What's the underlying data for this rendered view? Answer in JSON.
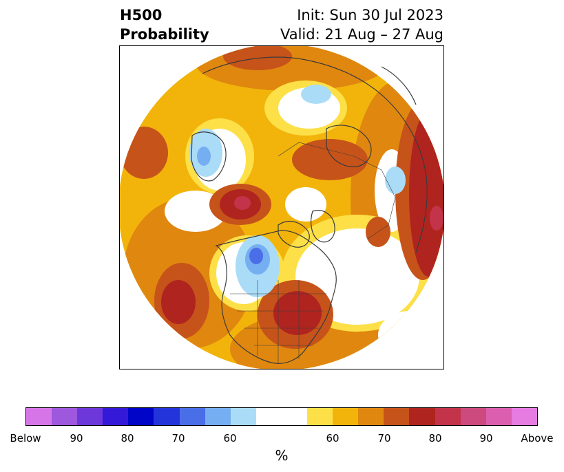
{
  "title": {
    "line1_left": "H500",
    "line2_left": "Probability",
    "line1_right": "Init: Sun 30 Jul 2023",
    "line2_right": "Valid: 21 Aug – 27 Aug"
  },
  "colorbar": {
    "unit": "%",
    "colors": [
      "#d675e8",
      "#9e58dd",
      "#6d38d9",
      "#3519d8",
      "#0005c8",
      "#2335da",
      "#4a6ee8",
      "#75aef1",
      "#aadcf8",
      "#ffffff",
      "#ffffff",
      "#fde047",
      "#f2b40b",
      "#e0870f",
      "#c6531a",
      "#b0241f",
      "#c3334a",
      "#cc4a7d",
      "#db5fae",
      "#e67be2"
    ],
    "tick_labels": [
      "Below",
      "90",
      "80",
      "70",
      "60",
      "60",
      "70",
      "80",
      "90",
      "Above"
    ]
  },
  "map": {
    "colors": {
      "light_yellow": "#fde047",
      "yellow": "#f2b40b",
      "orange": "#e0870f",
      "dark_orange": "#c6531a",
      "red": "#b0241f",
      "crimson": "#c3334a",
      "light_blue": "#aadcf8",
      "mid_blue": "#75aef1",
      "blue": "#4a6ee8",
      "coastline": "#3a3a3a"
    }
  }
}
